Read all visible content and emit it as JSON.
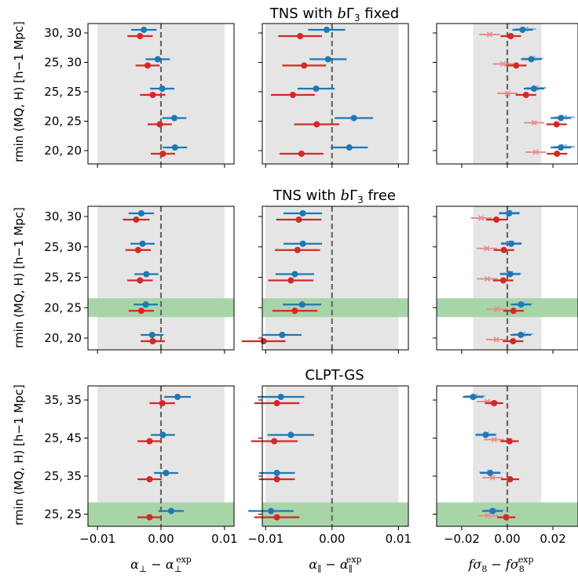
{
  "colors": {
    "blue": "#1f77b4",
    "red": "#d62728",
    "light_blue": "#7fb2de",
    "light_red": "#ea8d8d",
    "shade": "#e5e5e5",
    "highlight": "#a8d5a8"
  },
  "x_axis_labels": [
    "α⊥ − α⊥exp",
    "α∥ − α∥exp",
    "fσ8 − fσ8exp"
  ],
  "y_axis_label": "rmin (MQ, H) [h−1 Mpc]",
  "chart_data": [
    {
      "type": "scatter",
      "title": "TNS with bΓ3 fixed",
      "categories": [
        "30, 30",
        "25, 30",
        "25, 25",
        "20, 25",
        "20, 20"
      ],
      "highlight_category": null,
      "columns": [
        {
          "xlabel": "α⊥ − α⊥exp",
          "xlim": [
            -0.0115,
            0.0115
          ],
          "shade": [
            -0.01,
            0.01
          ],
          "xticks": [
            "−0.01",
            "0.00",
            "0.01"
          ],
          "series": [
            {
              "name": "blue",
              "values": [
                -0.0027,
                -0.0005,
                0.0002,
                0.0021,
                0.0022
              ],
              "errors": [
                0.002,
                0.0019,
                0.0019,
                0.0019,
                0.0019
              ]
            },
            {
              "name": "red",
              "values": [
                -0.0033,
                -0.0021,
                -0.0013,
                -0.0002,
                0.0003
              ],
              "errors": [
                0.002,
                0.0019,
                0.002,
                0.0019,
                0.0019
              ]
            }
          ]
        },
        {
          "xlabel": "α∥ − α∥exp",
          "xlim": [
            -0.0105,
            0.0115
          ],
          "shade": [
            -0.01,
            0.01
          ],
          "xticks": [
            "−0.01",
            "0.00",
            "0.01"
          ],
          "series": [
            {
              "name": "blue",
              "values": [
                -0.0008,
                -0.0006,
                -0.0024,
                0.0033,
                0.0026
              ],
              "errors": [
                0.0028,
                0.0028,
                0.0028,
                0.0029,
                0.0028
              ]
            },
            {
              "name": "red",
              "values": [
                -0.0048,
                -0.0042,
                -0.0059,
                -0.0023,
                -0.0046
              ],
              "errors": [
                0.0033,
                0.0033,
                0.0033,
                0.0034,
                0.0033
              ]
            }
          ]
        },
        {
          "xlabel": "fσ8 − fσ8exp",
          "xlim": [
            -0.031,
            0.031
          ],
          "shade": [
            -0.015,
            0.015
          ],
          "xticks": [
            "−0.02",
            "0.00",
            "0.02"
          ],
          "series": [
            {
              "name": "blue",
              "values": [
                0.0067,
                0.0105,
                0.0117,
                0.0235,
                0.0235
              ],
              "errors": [
                0.0045,
                0.0045,
                0.0045,
                0.0045,
                0.0045
              ]
            },
            {
              "name": "red",
              "values": [
                0.0015,
                0.0039,
                0.0082,
                0.0216,
                0.0218
              ],
              "errors": [
                0.0045,
                0.0045,
                0.0045,
                0.0045,
                0.0045
              ]
            }
          ],
          "crosses": [
            {
              "name": "light blue",
              "values": [
                0.0081,
                0.0112,
                0.0125,
                0.025,
                0.025
              ],
              "errors": [
                0.0045,
                0.0045,
                0.0045,
                0.0045,
                0.0045
              ]
            },
            {
              "name": "light red",
              "values": [
                -0.0078,
                -0.0019,
                0.0001,
                0.0118,
                0.0125
              ],
              "errors": [
                0.0045,
                0.0045,
                0.0045,
                0.0045,
                0.0045
              ]
            }
          ]
        }
      ]
    },
    {
      "type": "scatter",
      "title": "TNS with bΓ3 free",
      "categories": [
        "30, 30",
        "25, 30",
        "25, 25",
        "20, 25",
        "20, 20"
      ],
      "highlight_category": "20, 25",
      "columns": [
        {
          "xlabel": "α⊥ − α⊥exp",
          "xlim": [
            -0.0115,
            0.0115
          ],
          "shade": [
            -0.01,
            0.01
          ],
          "xticks": [
            "−0.01",
            "0.00",
            "0.01"
          ],
          "series": [
            {
              "name": "blue",
              "values": [
                -0.0031,
                -0.0029,
                -0.0023,
                -0.0024,
                -0.0014
              ],
              "errors": [
                0.002,
                0.0019,
                0.0019,
                0.0019,
                0.0018
              ]
            },
            {
              "name": "red",
              "values": [
                -0.0039,
                -0.0036,
                -0.0033,
                -0.0031,
                -0.0013
              ],
              "errors": [
                0.0021,
                0.002,
                0.002,
                0.002,
                0.0019
              ]
            }
          ]
        },
        {
          "xlabel": "α∥ − α∥exp",
          "xlim": [
            -0.0105,
            0.0115
          ],
          "shade": [
            -0.01,
            0.01
          ],
          "xticks": [
            "−0.01",
            "0.00",
            "0.01"
          ],
          "series": [
            {
              "name": "blue",
              "values": [
                -0.0044,
                -0.0044,
                -0.0056,
                -0.0045,
                -0.0075
              ],
              "errors": [
                0.0029,
                0.0029,
                0.0029,
                0.0029,
                0.0029
              ]
            },
            {
              "name": "red",
              "values": [
                -0.005,
                -0.0052,
                -0.0062,
                -0.0056,
                -0.0103
              ],
              "errors": [
                0.0034,
                0.0034,
                0.0034,
                0.0034,
                0.0033
              ]
            }
          ]
        },
        {
          "xlabel": "fσ8 − fσ8exp",
          "xlim": [
            -0.031,
            0.031
          ],
          "shade": [
            -0.015,
            0.015
          ],
          "xticks": [
            "−0.02",
            "0.00",
            "0.02"
          ],
          "series": [
            {
              "name": "blue",
              "values": [
                0.0008,
                0.0017,
                0.0012,
                0.006,
                0.0059
              ],
              "errors": [
                0.0045,
                0.0045,
                0.0045,
                0.0045,
                0.0045
              ]
            },
            {
              "name": "red",
              "values": [
                -0.0048,
                -0.0015,
                -0.0018,
                0.0027,
                0.0025
              ],
              "errors": [
                0.0045,
                0.0045,
                0.0045,
                0.0045,
                0.0045
              ]
            }
          ],
          "crosses": [
            {
              "name": "light blue",
              "values": [
                0.001,
                0.0018,
                0.0015,
                0.0068,
                0.0068
              ],
              "errors": [
                0.0045,
                0.0045,
                0.0045,
                0.0045,
                0.0045
              ]
            },
            {
              "name": "light red",
              "values": [
                -0.0115,
                -0.009,
                -0.0088,
                -0.0045,
                -0.0048
              ],
              "errors": [
                0.0045,
                0.0045,
                0.0045,
                0.0045,
                0.0045
              ]
            }
          ]
        }
      ]
    },
    {
      "type": "scatter",
      "title": "CLPT-GS",
      "categories": [
        "35, 35",
        "25, 45",
        "25, 35",
        "25, 25"
      ],
      "highlight_category": "25, 25",
      "columns": [
        {
          "xlabel": "α⊥ − α⊥exp",
          "xlim": [
            -0.0115,
            0.0115
          ],
          "shade": [
            -0.01,
            0.01
          ],
          "xticks": [
            "−0.01",
            "0.00",
            "0.01"
          ],
          "series": [
            {
              "name": "blue",
              "values": [
                0.0026,
                0.0003,
                0.0008,
                0.0016
              ],
              "errors": [
                0.0021,
                0.0019,
                0.0019,
                0.002
              ]
            },
            {
              "name": "red",
              "values": [
                0.0002,
                -0.0018,
                -0.0018,
                -0.0018
              ],
              "errors": [
                0.002,
                0.0019,
                0.0019,
                0.0019
              ]
            }
          ]
        },
        {
          "xlabel": "α∥ − α∥exp",
          "xlim": [
            -0.0105,
            0.0115
          ],
          "shade": [
            -0.01,
            0.01
          ],
          "xticks": [
            "−0.01",
            "0.00",
            "0.01"
          ],
          "series": [
            {
              "name": "blue",
              "values": [
                -0.0077,
                -0.0062,
                -0.0083,
                -0.0092
              ],
              "errors": [
                0.0035,
                0.0035,
                0.0027,
                0.0034
              ]
            },
            {
              "name": "red",
              "values": [
                -0.0083,
                -0.0087,
                -0.0083,
                -0.0083
              ],
              "errors": [
                0.0034,
                0.0035,
                0.0027,
                0.0034
              ]
            }
          ]
        },
        {
          "xlabel": "fσ8 − fσ8exp",
          "xlim": [
            -0.031,
            0.031
          ],
          "shade": [
            -0.015,
            0.015
          ],
          "xticks": [
            "−0.02",
            "0.00",
            "0.02"
          ],
          "series": [
            {
              "name": "blue",
              "values": [
                -0.015,
                -0.0095,
                -0.0075,
                -0.0065
              ],
              "errors": [
                0.0045,
                0.0045,
                0.0045,
                0.0045
              ]
            },
            {
              "name": "red",
              "values": [
                -0.0058,
                0.001,
                0.0012,
                -0.0005
              ],
              "errors": [
                0.004,
                0.004,
                0.004,
                0.004
              ]
            }
          ],
          "crosses": [
            {
              "name": "light blue",
              "values": [
                -0.0142,
                -0.0092,
                -0.0078,
                -0.0058
              ],
              "errors": [
                0.0045,
                0.0045,
                0.0045,
                0.0045
              ]
            },
            {
              "name": "light red",
              "values": [
                -0.0088,
                -0.0058,
                -0.0065,
                -0.0085
              ],
              "errors": [
                0.0045,
                0.0045,
                0.0045,
                0.0045
              ]
            }
          ]
        }
      ]
    }
  ]
}
